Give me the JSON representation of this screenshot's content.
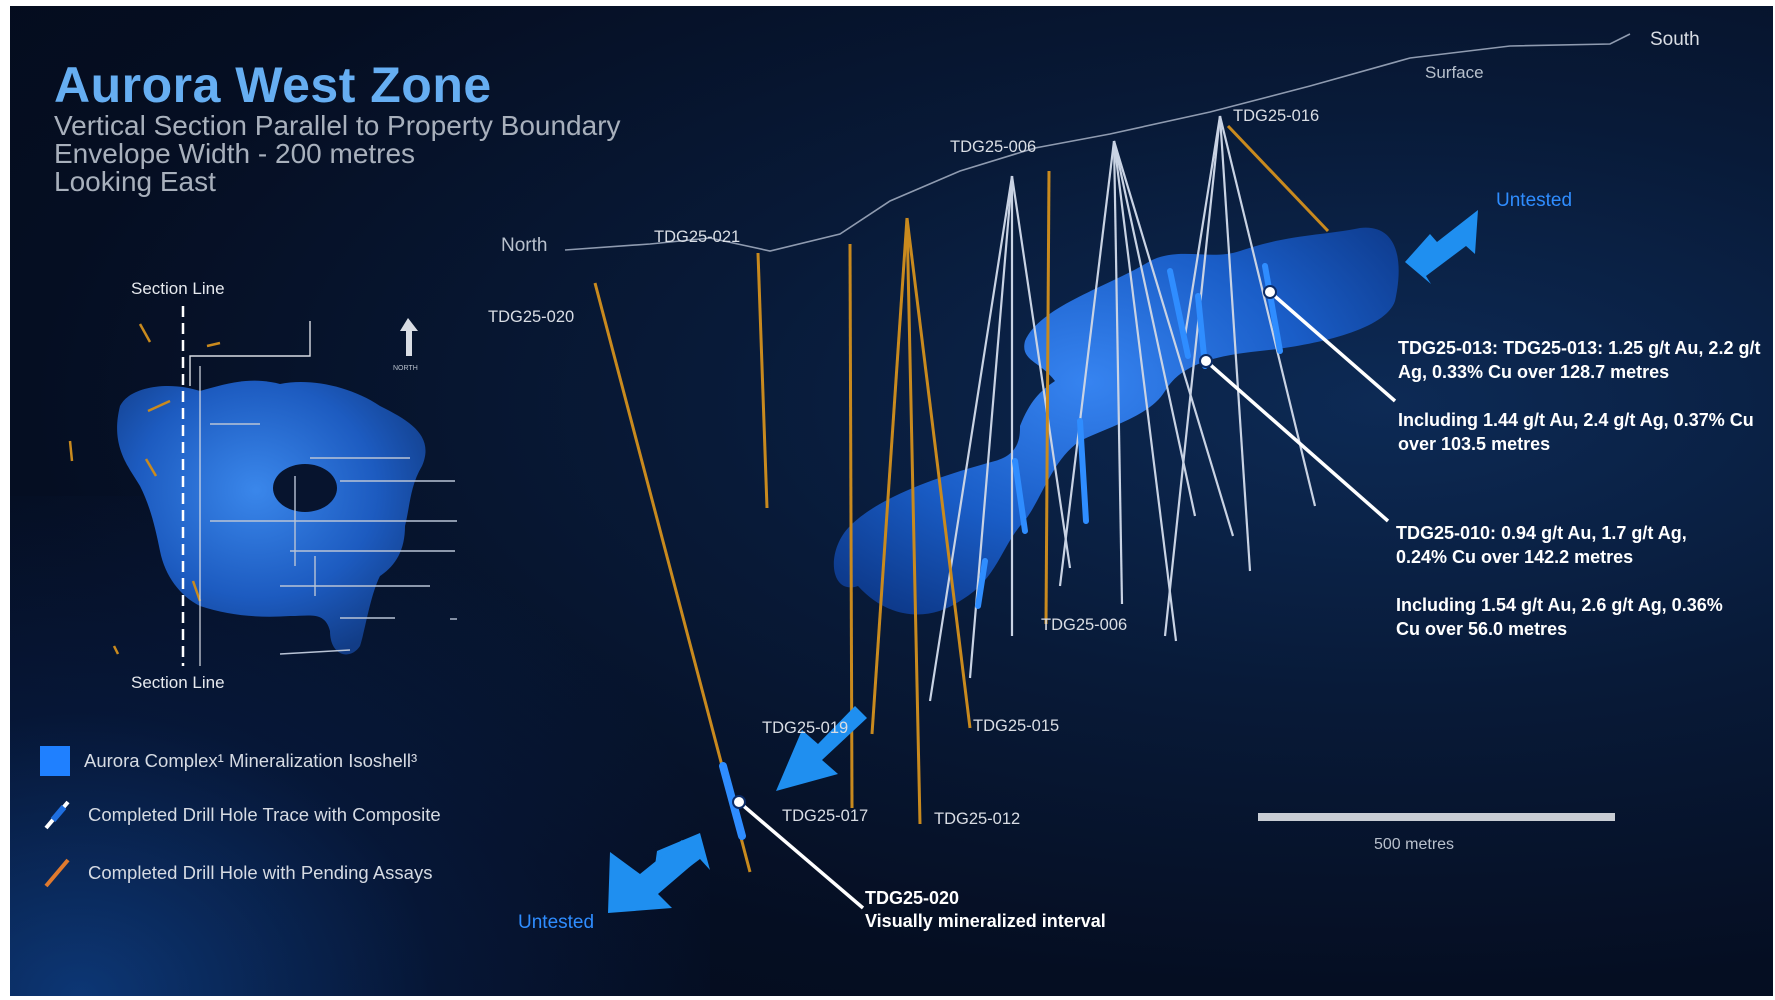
{
  "header": {
    "title": "Aurora West Zone",
    "subtitle_1": "Vertical Section Parallel to Property Boundary",
    "subtitle_2": "Envelope Width - 200 metres",
    "subtitle_3": "Looking East"
  },
  "orientation": {
    "south": "South",
    "north": "North",
    "surface": "Surface"
  },
  "untested": {
    "top": "Untested",
    "bottom": "Untested"
  },
  "drill_holes": {
    "tdg25_016": "TDG25-016",
    "tdg25_006_top": "TDG25-006",
    "tdg25_021": "TDG25-021",
    "tdg25_020": "TDG25-020",
    "tdg25_006_bottom": "TDG25-006",
    "tdg25_019": "TDG25-019",
    "tdg25_015": "TDG25-015",
    "tdg25_017": "TDG25-017",
    "tdg25_012": "TDG25-012"
  },
  "inset": {
    "section_line_top": "Section Line",
    "section_line_bottom": "Section Line",
    "north_label": "NORTH"
  },
  "legend": {
    "isoshell": "Aurora Complex¹ Mineralization Isoshell³",
    "composite": "Completed Drill Hole Trace with Composite",
    "pending": "Completed Drill Hole with Pending Assays"
  },
  "results": {
    "tdg25_013_main": "TDG25-013: TDG25-013: 1.25 g/t Au, 2.2 g/t Ag, 0.33% Cu over 128.7 metres",
    "tdg25_013_incl": "Including 1.44 g/t Au, 2.4 g/t  Ag, 0.37% Cu over 103.5 metres",
    "tdg25_010_main": "TDG25-010: 0.94 g/t Au, 1.7 g/t Ag, 0.24% Cu over 142.2 metres",
    "tdg25_010_incl": "Including 1.54 g/t Au, 2.6 g/t Ag, 0.36% Cu over 56.0 metres",
    "tdg25_020_title": "TDG25-020",
    "tdg25_020_desc": "Visually mineralized interval"
  },
  "scale": {
    "label": "500 metres"
  },
  "colors": {
    "title_blue": "#66aef2",
    "isoshell_blue": "#1a64d6",
    "arrow_blue": "#1f8ff0",
    "pending_orange": "#c98a1e",
    "completed_white": "#c9d3e4"
  }
}
